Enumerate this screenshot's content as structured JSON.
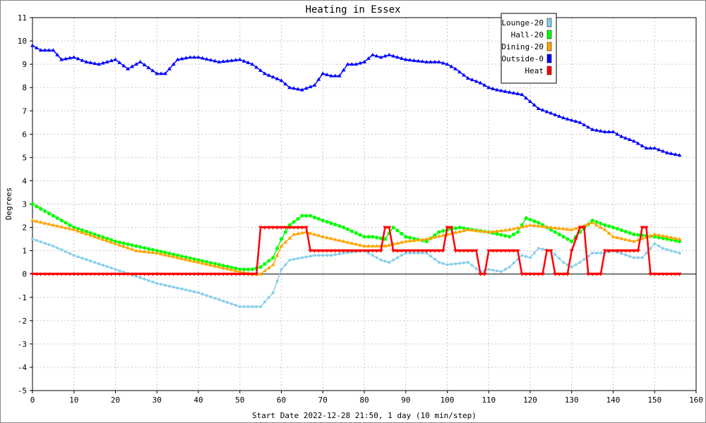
{
  "chart_data": {
    "type": "line",
    "title": "Heating in Essex",
    "xlabel": "Start Date 2022-12-28 21:50, 1 day (10 min/step)",
    "ylabel": "Degrees",
    "xlim": [
      0,
      160
    ],
    "ylim": [
      -5,
      11
    ],
    "xticks": [
      0,
      10,
      20,
      30,
      40,
      50,
      60,
      70,
      80,
      90,
      100,
      110,
      120,
      130,
      140,
      150,
      160
    ],
    "yticks": [
      -5,
      -4,
      -3,
      -2,
      -1,
      0,
      1,
      2,
      3,
      4,
      5,
      6,
      7,
      8,
      9,
      10,
      11
    ],
    "grid": true,
    "legend": "top-right",
    "series": [
      {
        "name": "Lounge-20",
        "color": "#87ceeb",
        "marker": "star",
        "x": [
          0,
          5,
          10,
          15,
          20,
          25,
          30,
          35,
          40,
          45,
          50,
          55,
          58,
          60,
          62,
          65,
          68,
          72,
          75,
          80,
          84,
          86,
          90,
          95,
          98,
          100,
          105,
          108,
          110,
          113,
          115,
          118,
          120,
          122,
          125,
          128,
          130,
          132,
          135,
          138,
          140,
          145,
          147,
          150,
          152,
          156
        ],
        "y": [
          1.5,
          1.2,
          0.8,
          0.5,
          0.2,
          -0.1,
          -0.4,
          -0.6,
          -0.8,
          -1.1,
          -1.4,
          -1.4,
          -0.8,
          0.2,
          0.6,
          0.7,
          0.8,
          0.8,
          0.9,
          1.0,
          0.6,
          0.5,
          0.9,
          0.9,
          0.5,
          0.4,
          0.5,
          0.1,
          0.2,
          0.1,
          0.3,
          0.8,
          0.7,
          1.1,
          1.0,
          0.5,
          0.3,
          0.5,
          0.9,
          0.9,
          1.0,
          0.7,
          0.7,
          1.3,
          1.1,
          0.9
        ]
      },
      {
        "name": "Hall-20",
        "color": "#00ff00",
        "marker": "circle",
        "x": [
          0,
          5,
          10,
          15,
          20,
          25,
          30,
          35,
          40,
          45,
          50,
          53,
          55,
          58,
          60,
          62,
          65,
          67,
          70,
          75,
          80,
          82,
          85,
          87,
          90,
          95,
          98,
          100,
          103,
          106,
          110,
          115,
          117,
          119,
          122,
          125,
          128,
          130,
          132,
          135,
          138,
          140,
          145,
          150,
          156
        ],
        "y": [
          3.0,
          2.5,
          2.0,
          1.7,
          1.4,
          1.2,
          1.0,
          0.8,
          0.6,
          0.4,
          0.2,
          0.2,
          0.3,
          0.7,
          1.5,
          2.1,
          2.5,
          2.5,
          2.3,
          2.0,
          1.6,
          1.6,
          1.5,
          2.0,
          1.6,
          1.4,
          1.8,
          1.9,
          2.0,
          1.9,
          1.8,
          1.6,
          1.8,
          2.4,
          2.2,
          1.9,
          1.6,
          1.4,
          1.8,
          2.3,
          2.1,
          2.0,
          1.7,
          1.6,
          1.4
        ]
      },
      {
        "name": "Dining-20",
        "color": "#ffa500",
        "marker": "triangle",
        "x": [
          0,
          5,
          10,
          15,
          20,
          25,
          30,
          35,
          40,
          45,
          50,
          53,
          55,
          58,
          60,
          63,
          66,
          70,
          75,
          80,
          85,
          90,
          95,
          100,
          105,
          110,
          115,
          120,
          125,
          130,
          135,
          138,
          140,
          145,
          150,
          156
        ],
        "y": [
          2.3,
          2.1,
          1.9,
          1.6,
          1.3,
          1.0,
          0.9,
          0.7,
          0.5,
          0.3,
          0.1,
          0.0,
          0.0,
          0.4,
          1.2,
          1.7,
          1.8,
          1.6,
          1.4,
          1.2,
          1.2,
          1.4,
          1.5,
          1.7,
          1.9,
          1.8,
          1.9,
          2.1,
          2.0,
          1.9,
          2.2,
          1.9,
          1.6,
          1.4,
          1.7,
          1.5
        ]
      },
      {
        "name": "Outside-0",
        "color": "#0000ff",
        "marker": "triangle",
        "x": [
          0,
          2,
          5,
          7,
          10,
          13,
          16,
          20,
          23,
          26,
          30,
          32,
          35,
          38,
          40,
          45,
          50,
          53,
          56,
          60,
          62,
          65,
          68,
          70,
          72,
          74,
          76,
          78,
          80,
          82,
          84,
          86,
          90,
          95,
          98,
          100,
          102,
          105,
          108,
          110,
          112,
          115,
          118,
          120,
          122,
          125,
          128,
          130,
          132,
          135,
          138,
          140,
          142,
          145,
          148,
          150,
          153,
          156
        ],
        "y": [
          9.8,
          9.6,
          9.6,
          9.2,
          9.3,
          9.1,
          9.0,
          9.2,
          8.8,
          9.1,
          8.6,
          8.6,
          9.2,
          9.3,
          9.3,
          9.1,
          9.2,
          9.0,
          8.6,
          8.3,
          8.0,
          7.9,
          8.1,
          8.6,
          8.5,
          8.5,
          9.0,
          9.0,
          9.1,
          9.4,
          9.3,
          9.4,
          9.2,
          9.1,
          9.1,
          9.0,
          8.8,
          8.4,
          8.2,
          8.0,
          7.9,
          7.8,
          7.7,
          7.4,
          7.1,
          6.9,
          6.7,
          6.6,
          6.5,
          6.2,
          6.1,
          6.1,
          5.9,
          5.7,
          5.4,
          5.4,
          5.2,
          5.1
        ]
      },
      {
        "name": "Heat",
        "color": "#ff0000",
        "marker": "triangle-down",
        "x": [
          0,
          54,
          55,
          66,
          67,
          84,
          85,
          86,
          87,
          99,
          100,
          101,
          102,
          107,
          108,
          109,
          110,
          117,
          118,
          123,
          124,
          125,
          126,
          129,
          130,
          132,
          133,
          134,
          135,
          137,
          138,
          146,
          147,
          148,
          149,
          156
        ],
        "y": [
          0,
          0,
          2,
          2,
          1,
          1,
          2,
          2,
          1,
          1,
          2,
          2,
          1,
          1,
          0,
          0,
          1,
          1,
          0,
          0,
          1,
          1,
          0,
          0,
          1,
          2,
          2,
          0,
          0,
          0,
          1,
          1,
          2,
          2,
          0,
          0
        ]
      }
    ]
  }
}
